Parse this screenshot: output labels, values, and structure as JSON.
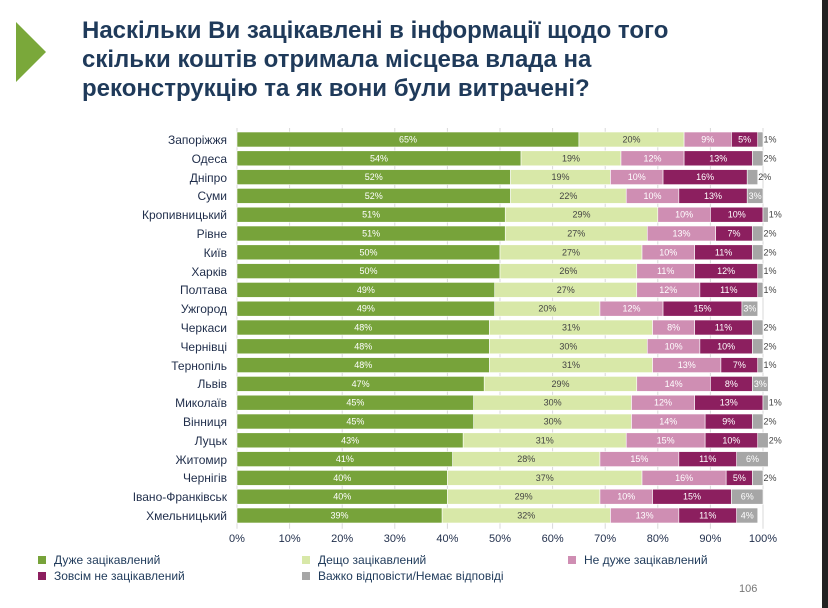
{
  "title_lines": [
    "Наскільки Ви зацікавлені в інформації щодо того",
    "скільки коштів отримала місцева влада на",
    "реконструкцію та як вони були витрачені?"
  ],
  "page_number": "106",
  "chart_data": {
    "type": "bar",
    "orientation": "horizontal",
    "stacked": "percent",
    "categories": [
      "Запоріжжя",
      "Одеса",
      "Дніпро",
      "Суми",
      "Кропивницький",
      "Рівне",
      "Київ",
      "Харків",
      "Полтава",
      "Ужгород",
      "Черкаси",
      "Чернівці",
      "Тернопіль",
      "Львів",
      "Миколаїв",
      "Вінниця",
      "Луцьк",
      "Житомир",
      "Чернігів",
      "Івано-Франківськ",
      "Хмельницький"
    ],
    "series": [
      {
        "name": "Дуже зацікавлений",
        "color": "#77a33a",
        "label_color": "#ffffff",
        "values": [
          65,
          54,
          52,
          52,
          51,
          51,
          50,
          50,
          49,
          49,
          48,
          48,
          48,
          47,
          45,
          45,
          43,
          41,
          40,
          40,
          39
        ]
      },
      {
        "name": "Дещо зацікавлений",
        "color": "#d8e8a8",
        "label_color": "#444444",
        "values": [
          20,
          19,
          19,
          22,
          29,
          27,
          27,
          26,
          27,
          20,
          31,
          30,
          31,
          29,
          30,
          30,
          31,
          28,
          37,
          29,
          32
        ]
      },
      {
        "name": "Не дуже зацікавлений",
        "color": "#cf8eb3",
        "label_color": "#ffffff",
        "values": [
          9,
          12,
          10,
          10,
          10,
          13,
          10,
          11,
          12,
          12,
          8,
          10,
          13,
          14,
          12,
          14,
          15,
          15,
          16,
          10,
          13
        ]
      },
      {
        "name": "Зовсім не зацікавлений",
        "color": "#8c1f5f",
        "label_color": "#ffffff",
        "values": [
          5,
          13,
          16,
          13,
          10,
          7,
          11,
          12,
          11,
          15,
          11,
          10,
          7,
          8,
          13,
          9,
          10,
          11,
          5,
          15,
          11
        ]
      },
      {
        "name": "Важко відповісти/Немає відповіді",
        "color": "#a6a6a6",
        "label_color": "#ffffff",
        "values": [
          1,
          2,
          2,
          3,
          1,
          2,
          2,
          1,
          1,
          3,
          2,
          2,
          1,
          3,
          1,
          2,
          2,
          6,
          2,
          6,
          4
        ]
      }
    ],
    "x_ticks": [
      "0%",
      "10%",
      "20%",
      "30%",
      "40%",
      "50%",
      "60%",
      "70%",
      "80%",
      "90%",
      "100%"
    ],
    "xlim": [
      0,
      100
    ],
    "legend_position": "bottom",
    "grid": true
  }
}
